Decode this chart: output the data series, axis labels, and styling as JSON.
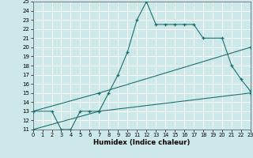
{
  "xlabel": "Humidex (Indice chaleur)",
  "background_color": "#cce8e8",
  "grid_color": "#ffffff",
  "line_color": "#1a7070",
  "ylim": [
    11,
    25
  ],
  "xlim": [
    0,
    23
  ],
  "yticks": [
    11,
    12,
    13,
    14,
    15,
    16,
    17,
    18,
    19,
    20,
    21,
    22,
    23,
    24,
    25
  ],
  "xticks": [
    0,
    1,
    2,
    3,
    4,
    5,
    6,
    7,
    8,
    9,
    10,
    11,
    12,
    13,
    14,
    15,
    16,
    17,
    18,
    19,
    20,
    21,
    22,
    23
  ],
  "line1_x": [
    0,
    2,
    3,
    4,
    5,
    6,
    7,
    8,
    9,
    10,
    11,
    12,
    13,
    14,
    15,
    16,
    17,
    18,
    20,
    21,
    22,
    23
  ],
  "line1_y": [
    13,
    13,
    11,
    11,
    13,
    13,
    13,
    15,
    17,
    19.5,
    23,
    25,
    22.5,
    22.5,
    22.5,
    22.5,
    22.5,
    21,
    21,
    18,
    16.5,
    15.2
  ],
  "line2_x": [
    0,
    7,
    23
  ],
  "line2_y": [
    13,
    15,
    20
  ],
  "line3_x": [
    0,
    7,
    23
  ],
  "line3_y": [
    11,
    13,
    15
  ]
}
